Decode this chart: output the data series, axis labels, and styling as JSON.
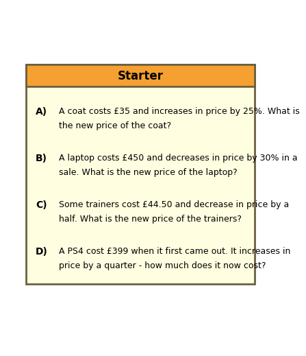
{
  "title": "Starter",
  "title_bg_color": "#F5A030",
  "title_text_color": "#000000",
  "card_bg_color": "#FFFEE0",
  "card_border_color": "#6B6040",
  "outer_bg_color": "#FFFFFF",
  "items": [
    {
      "label": "A)",
      "line1": "A coat costs £35 and increases in price by 25%. What is",
      "line2": "the new price of the coat?"
    },
    {
      "label": "B)",
      "line1": "A laptop costs £450 and decreases in price by 30% in a",
      "line2": "sale. What is the new price of the laptop?"
    },
    {
      "label": "C)",
      "line1": "Some trainers cost £44.50 and decrease in price by a",
      "line2": "half. What is the new price of the trainers?"
    },
    {
      "label": "D)",
      "line1": "A PS4 cost £399 when it first came out. It increases in",
      "line2": "price by a quarter - how much does it now cost?"
    }
  ],
  "font_family": "DejaVu Sans",
  "title_fontsize": 12,
  "label_fontsize": 10,
  "text_fontsize": 9
}
